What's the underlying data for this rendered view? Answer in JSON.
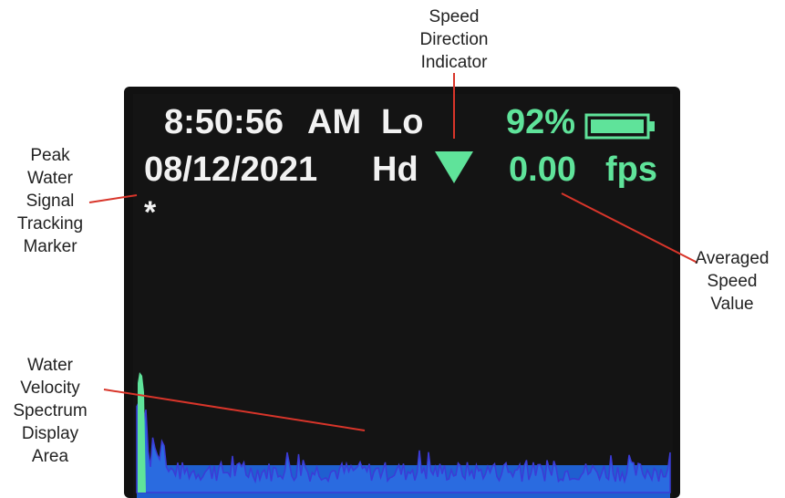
{
  "screen": {
    "time": "8:50:56",
    "meridiem": "AM",
    "mode": "Lo",
    "battery": "92%",
    "date": "08/12/2021",
    "hold": "Hd",
    "speed": "0.00",
    "unit": "fps",
    "marker": "*"
  },
  "annotations": {
    "speed_direction": [
      "Speed",
      "Direction",
      "Indicator"
    ],
    "peak_marker": [
      "Peak",
      "Water",
      "Signal",
      "Tracking",
      "Marker"
    ],
    "averaged_speed": [
      "Averaged",
      "Speed",
      "Value"
    ],
    "spectrum_area": [
      "Water",
      "Velocity",
      "Spectrum",
      "Display",
      "Area"
    ]
  }
}
